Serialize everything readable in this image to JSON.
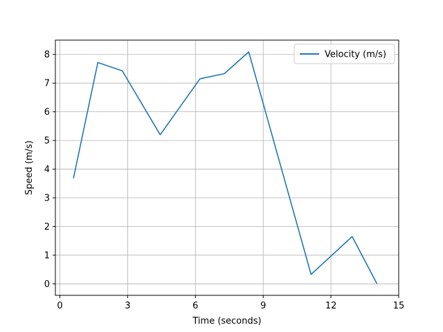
{
  "chart_data": {
    "type": "line",
    "title": "",
    "xlabel": "Time (seconds)",
    "ylabel": "Speed (m/s)",
    "xlim": [
      -0.2,
      15
    ],
    "ylim": [
      -0.4,
      8.5
    ],
    "xticks": [
      0,
      3,
      6,
      9,
      12,
      15
    ],
    "yticks": [
      0,
      1,
      2,
      3,
      4,
      5,
      6,
      7,
      8
    ],
    "grid": true,
    "legend_position": "top-right",
    "series": [
      {
        "name": "Velocity (m/s)",
        "color": "#1f77b4",
        "x": [
          0.6,
          1.68,
          2.76,
          4.44,
          6.2,
          7.28,
          8.36,
          11.12,
          12.94,
          14.04
        ],
        "y": [
          3.68,
          7.72,
          7.43,
          5.2,
          7.15,
          7.33,
          8.09,
          0.33,
          1.65,
          0.0
        ]
      }
    ]
  }
}
